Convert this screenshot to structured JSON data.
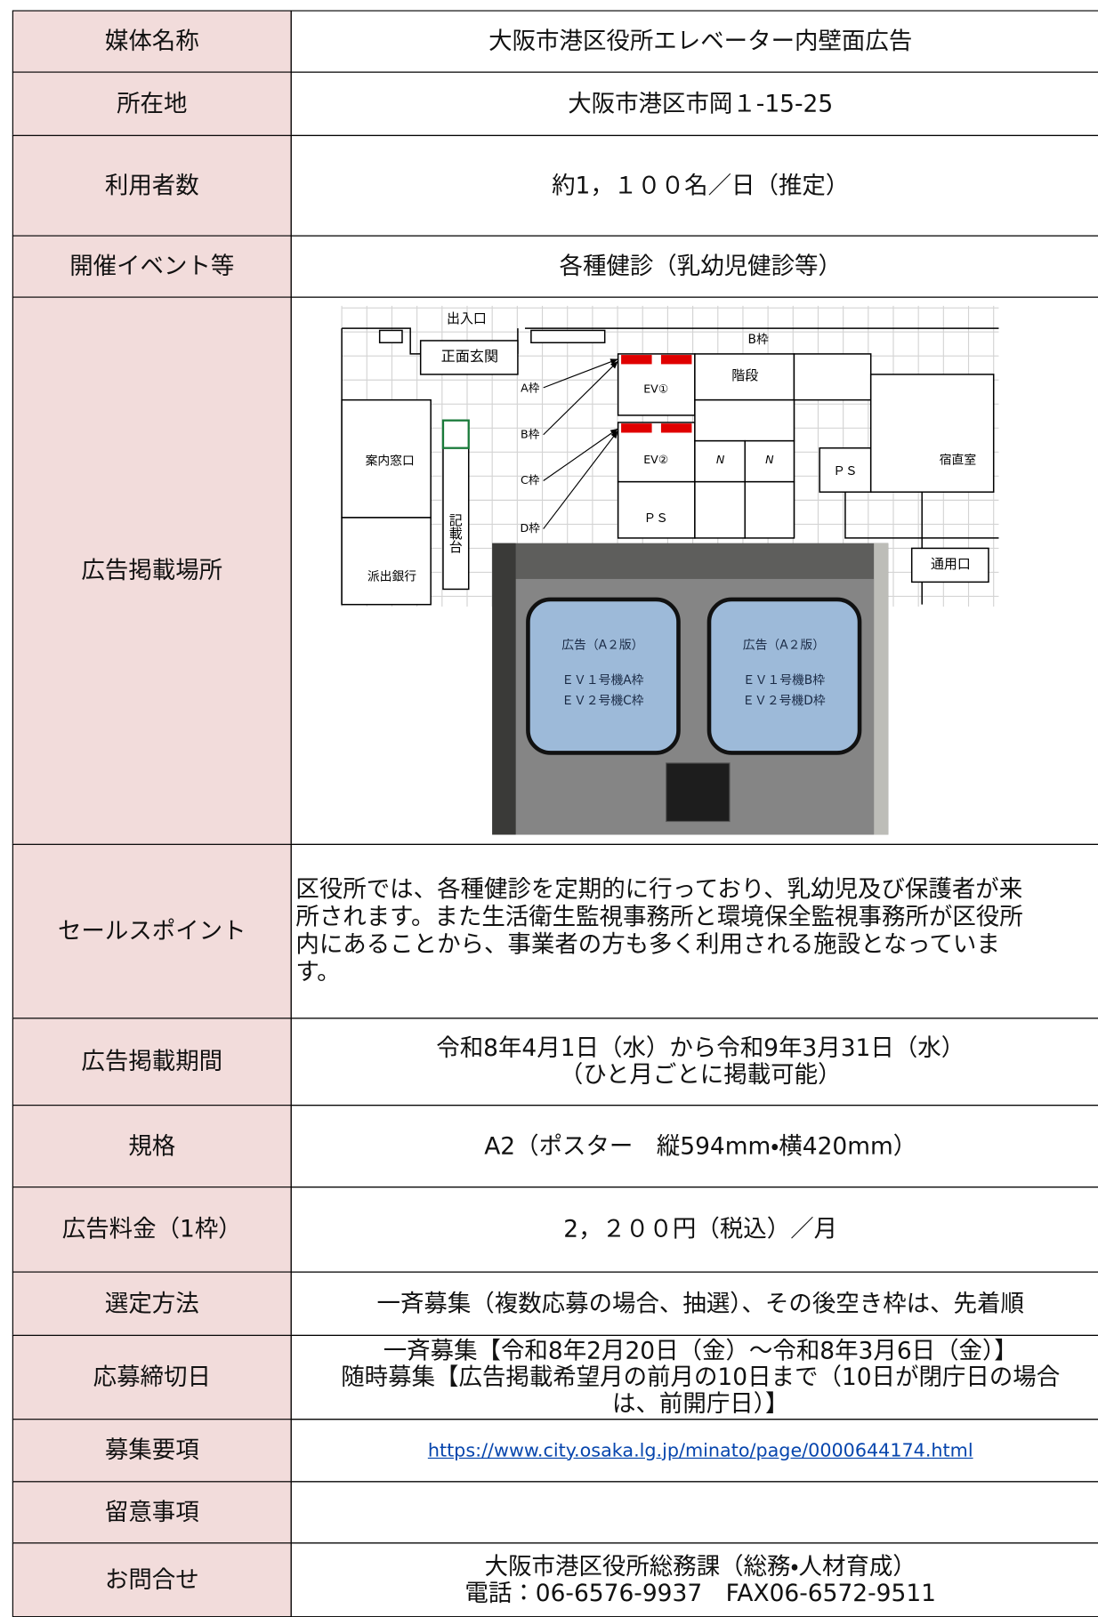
{
  "table": {
    "rows": [
      {
        "label": "媒体名称",
        "value": "大阪市港区役所エレベーター内壁面広告"
      },
      {
        "label": "所在地",
        "value": "大阪市港区市岡１-15-25"
      },
      {
        "label": "利用者数",
        "value": "約1，１００名／日（推定）"
      },
      {
        "label": "開催イベント等",
        "value": "各種健診（乳幼児健診等）"
      },
      {
        "label": "広告掲載場所",
        "diagram": {
          "entrance": "出入口",
          "front": "正面玄関",
          "frame_b_top": "B枠",
          "stairs": "階段",
          "frame_a": "A枠",
          "frame_b": "B枠",
          "frame_c": "C枠",
          "frame_d": "D枠",
          "ev1": "EV①",
          "ev2": "EV②",
          "ps1": "ＰＳ",
          "ps2": "ＰＳ",
          "n1": "N",
          "n2": "N",
          "reception": "案内窓口",
          "desk": "記載台",
          "bank": "派出銀行",
          "night": "宿直室",
          "service": "通用口",
          "panels": [
            [
              "広告（A２版）",
              "ＥＶ１号機A枠",
              "ＥＶ２号機C枠"
            ],
            [
              "広告（A２版）",
              "ＥＶ１号機B枠",
              "ＥＶ２号機D枠"
            ]
          ]
        }
      },
      {
        "label": "セールスポイント",
        "lines": [
          "区役所では、各種健診を定期的に行っており、乳幼児及び保護者が来",
          "所されます。また生活衛生監視事務所と環境保全監視事務所が区役所",
          "内にあることから、事業者の方も多く利用される施設となっていま",
          "す。"
        ]
      },
      {
        "label": "広告掲載期間",
        "lines": [
          "令和8年4月1日（水）から令和9年3月31日（水）",
          "（ひと月ごとに掲載可能）"
        ]
      },
      {
        "label": "規格",
        "value": "A2（ポスター　縦594mm・横420mm）"
      },
      {
        "label": "広告料金（1枠）",
        "value": "2，２００円（税込）／月"
      },
      {
        "label": "選定方法",
        "value": "一斉募集（複数応募の場合、抽選）、その後空き枠は、先着順"
      },
      {
        "label": "応募締切日",
        "lines": [
          "一斉募集【令和8年2月20日（金）～令和8年3月6日（金）】",
          "随時募集【広告掲載希望月の前月の10日まで（10日が閉庁日の場合",
          "は、前開庁日）】"
        ]
      },
      {
        "label": "募集要項",
        "link": "https://www.city.osaka.lg.jp/minato/page/0000644174.html"
      },
      {
        "label": "留意事項"
      },
      {
        "label": "お問合せ",
        "lines": [
          "大阪市港区役所総務課（総務・人材育成）",
          "電話：06-6576-9937　FAX06-6572-9511"
        ]
      }
    ]
  }
}
